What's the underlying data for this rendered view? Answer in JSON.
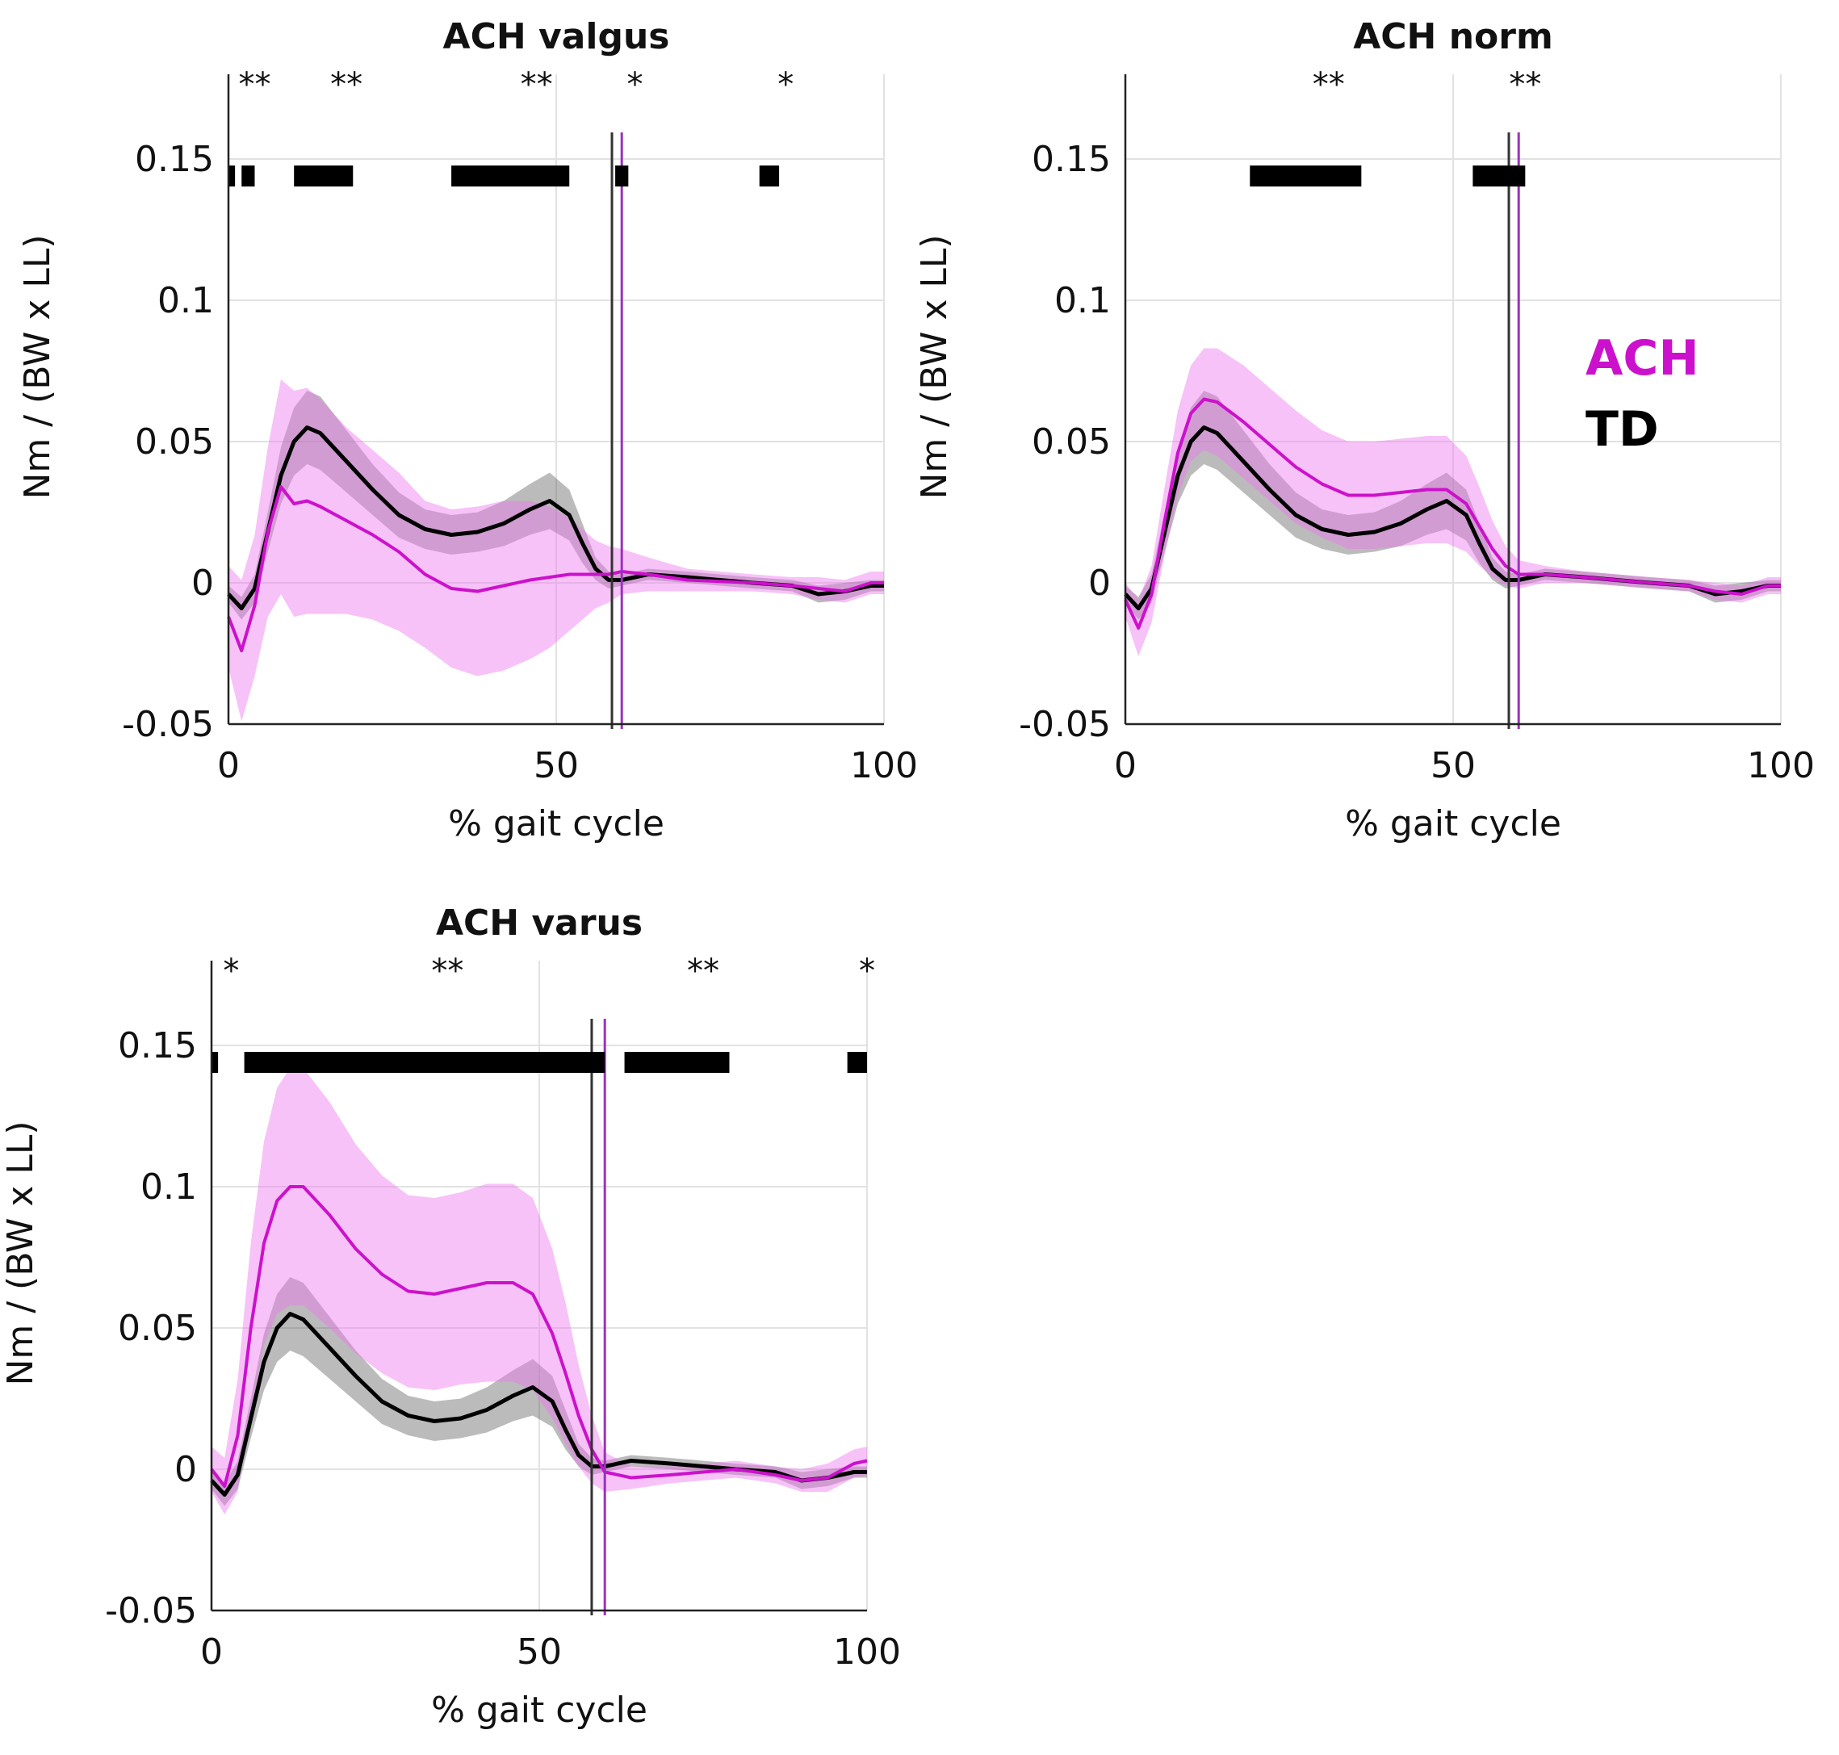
{
  "colors": {
    "ach": "#cc11cc",
    "ach_band": "#ee77ee",
    "td": "#000000",
    "td_band": "#555555",
    "grid": "#e2e2e2",
    "ach_vline": "#9933bb",
    "td_vline": "#333333"
  },
  "legend": {
    "ach": "ACH",
    "td": "TD"
  },
  "chart_data": [
    {
      "type": "line",
      "title": "ACH valgus",
      "xlabel": "% gait cycle",
      "ylabel": "Nm / (BW x LL)",
      "xlim": [
        0,
        100
      ],
      "ylim": [
        -0.05,
        0.18
      ],
      "xticks": [
        0,
        50,
        100
      ],
      "xtick_labels": [
        "0",
        "50",
        "100"
      ],
      "yticks": [
        -0.05,
        0,
        0.05,
        0.1,
        0.15
      ],
      "ytick_labels": [
        "-0.05",
        "0",
        "0.05",
        "0.1",
        "0.15"
      ],
      "grid": true,
      "toe_off": {
        "td": 58.5,
        "ach": 60
      },
      "significance_bars": [
        [
          0,
          1
        ],
        [
          2,
          4
        ],
        [
          10,
          19
        ],
        [
          34,
          52
        ],
        [
          59,
          61
        ],
        [
          81,
          84
        ]
      ],
      "stars": [
        {
          "x": 4,
          "text": "**"
        },
        {
          "x": 18,
          "text": "**"
        },
        {
          "x": 47,
          "text": "**"
        },
        {
          "x": 62,
          "text": "*"
        },
        {
          "x": 85,
          "text": "*"
        }
      ],
      "series": [
        {
          "name": "TD",
          "x": [
            0,
            2,
            4,
            6,
            8,
            10,
            12,
            14,
            18,
            22,
            26,
            30,
            34,
            38,
            42,
            46,
            49,
            52,
            54,
            56,
            58,
            60,
            64,
            70,
            80,
            86,
            90,
            94,
            98,
            100
          ],
          "mean": [
            -0.004,
            -0.009,
            -0.002,
            0.018,
            0.038,
            0.05,
            0.055,
            0.053,
            0.043,
            0.033,
            0.024,
            0.019,
            0.017,
            0.018,
            0.021,
            0.026,
            0.029,
            0.024,
            0.014,
            0.005,
            0.001,
            0.001,
            0.003,
            0.002,
            0.0,
            -0.001,
            -0.004,
            -0.003,
            -0.001,
            -0.001
          ],
          "sd": [
            0.003,
            0.004,
            0.005,
            0.007,
            0.01,
            0.012,
            0.013,
            0.013,
            0.011,
            0.009,
            0.008,
            0.007,
            0.007,
            0.007,
            0.008,
            0.009,
            0.01,
            0.009,
            0.007,
            0.004,
            0.003,
            0.002,
            0.002,
            0.002,
            0.002,
            0.002,
            0.003,
            0.003,
            0.002,
            0.002
          ]
        },
        {
          "name": "ACH",
          "x": [
            0,
            2,
            4,
            6,
            8,
            10,
            12,
            14,
            18,
            22,
            26,
            30,
            34,
            38,
            42,
            46,
            49,
            52,
            54,
            56,
            58,
            60,
            64,
            70,
            80,
            86,
            90,
            94,
            98,
            100
          ],
          "mean": [
            -0.012,
            -0.024,
            -0.008,
            0.018,
            0.034,
            0.028,
            0.029,
            0.027,
            0.022,
            0.017,
            0.011,
            0.003,
            -0.002,
            -0.003,
            -0.001,
            0.001,
            0.002,
            0.003,
            0.003,
            0.003,
            0.003,
            0.004,
            0.003,
            0.001,
            0.0,
            -0.001,
            -0.002,
            -0.003,
            0.0,
            0.0
          ],
          "sd": [
            0.018,
            0.025,
            0.025,
            0.03,
            0.038,
            0.04,
            0.04,
            0.038,
            0.033,
            0.03,
            0.028,
            0.026,
            0.028,
            0.03,
            0.03,
            0.028,
            0.025,
            0.02,
            0.016,
            0.012,
            0.01,
            0.008,
            0.006,
            0.004,
            0.003,
            0.003,
            0.004,
            0.004,
            0.004,
            0.004
          ]
        }
      ]
    },
    {
      "type": "line",
      "title": "ACH norm",
      "xlabel": "% gait cycle",
      "ylabel": "Nm / (BW x LL)",
      "xlim": [
        0,
        100
      ],
      "ylim": [
        -0.05,
        0.18
      ],
      "xticks": [
        0,
        50,
        100
      ],
      "xtick_labels": [
        "0",
        "50",
        "100"
      ],
      "yticks": [
        -0.05,
        0,
        0.05,
        0.1,
        0.15
      ],
      "ytick_labels": [
        "-0.05",
        "0",
        "0.05",
        "0.1",
        "0.15"
      ],
      "grid": true,
      "toe_off": {
        "td": 58.5,
        "ach": 60
      },
      "significance_bars": [
        [
          19,
          36
        ],
        [
          53,
          61
        ]
      ],
      "stars": [
        {
          "x": 31,
          "text": "**"
        },
        {
          "x": 61,
          "text": "**"
        }
      ],
      "series": [
        {
          "name": "TD",
          "x": [
            0,
            2,
            4,
            6,
            8,
            10,
            12,
            14,
            18,
            22,
            26,
            30,
            34,
            38,
            42,
            46,
            49,
            52,
            54,
            56,
            58,
            60,
            64,
            70,
            80,
            86,
            90,
            94,
            98,
            100
          ],
          "mean": [
            -0.004,
            -0.009,
            -0.002,
            0.018,
            0.038,
            0.05,
            0.055,
            0.053,
            0.043,
            0.033,
            0.024,
            0.019,
            0.017,
            0.018,
            0.021,
            0.026,
            0.029,
            0.024,
            0.014,
            0.005,
            0.001,
            0.001,
            0.003,
            0.002,
            0.0,
            -0.001,
            -0.004,
            -0.003,
            -0.001,
            -0.001
          ],
          "sd": [
            0.003,
            0.004,
            0.005,
            0.007,
            0.01,
            0.012,
            0.013,
            0.013,
            0.011,
            0.009,
            0.008,
            0.007,
            0.007,
            0.007,
            0.008,
            0.009,
            0.01,
            0.009,
            0.007,
            0.004,
            0.003,
            0.002,
            0.002,
            0.002,
            0.002,
            0.002,
            0.003,
            0.003,
            0.002,
            0.002
          ]
        },
        {
          "name": "ACH",
          "x": [
            0,
            2,
            4,
            6,
            8,
            10,
            12,
            14,
            18,
            22,
            26,
            30,
            34,
            38,
            42,
            46,
            49,
            52,
            54,
            56,
            58,
            60,
            64,
            70,
            80,
            86,
            90,
            94,
            98,
            100
          ],
          "mean": [
            -0.006,
            -0.016,
            -0.004,
            0.022,
            0.046,
            0.06,
            0.065,
            0.064,
            0.057,
            0.049,
            0.041,
            0.035,
            0.031,
            0.031,
            0.032,
            0.033,
            0.033,
            0.028,
            0.02,
            0.012,
            0.006,
            0.003,
            0.003,
            0.002,
            0.0,
            -0.001,
            -0.003,
            -0.004,
            -0.001,
            -0.001
          ],
          "sd": [
            0.006,
            0.01,
            0.01,
            0.012,
            0.015,
            0.017,
            0.018,
            0.019,
            0.02,
            0.02,
            0.02,
            0.019,
            0.019,
            0.019,
            0.019,
            0.019,
            0.019,
            0.017,
            0.014,
            0.01,
            0.007,
            0.005,
            0.003,
            0.002,
            0.002,
            0.002,
            0.003,
            0.003,
            0.003,
            0.003
          ]
        }
      ]
    },
    {
      "type": "line",
      "title": "ACH varus",
      "xlabel": "% gait cycle",
      "ylabel": "Nm / (BW x LL)",
      "xlim": [
        0,
        100
      ],
      "ylim": [
        -0.05,
        0.18
      ],
      "xticks": [
        0,
        50,
        100
      ],
      "xtick_labels": [
        "0",
        "50",
        "100"
      ],
      "yticks": [
        -0.05,
        0,
        0.05,
        0.1,
        0.15
      ],
      "ytick_labels": [
        "-0.05",
        "0",
        "0.05",
        "0.1",
        "0.15"
      ],
      "grid": true,
      "toe_off": {
        "td": 58,
        "ach": 60
      },
      "significance_bars": [
        [
          0,
          1
        ],
        [
          5,
          60
        ],
        [
          63,
          79
        ],
        [
          97,
          100
        ]
      ],
      "stars": [
        {
          "x": 3,
          "text": "*"
        },
        {
          "x": 36,
          "text": "**"
        },
        {
          "x": 75,
          "text": "**"
        },
        {
          "x": 100,
          "text": "*"
        }
      ],
      "series": [
        {
          "name": "TD",
          "x": [
            0,
            2,
            4,
            6,
            8,
            10,
            12,
            14,
            18,
            22,
            26,
            30,
            34,
            38,
            42,
            46,
            49,
            52,
            54,
            56,
            58,
            60,
            64,
            70,
            80,
            86,
            90,
            94,
            98,
            100
          ],
          "mean": [
            -0.004,
            -0.009,
            -0.002,
            0.018,
            0.038,
            0.05,
            0.055,
            0.053,
            0.043,
            0.033,
            0.024,
            0.019,
            0.017,
            0.018,
            0.021,
            0.026,
            0.029,
            0.024,
            0.014,
            0.005,
            0.001,
            0.001,
            0.003,
            0.002,
            0.0,
            -0.001,
            -0.004,
            -0.003,
            -0.001,
            -0.001
          ],
          "sd": [
            0.003,
            0.004,
            0.005,
            0.007,
            0.01,
            0.012,
            0.013,
            0.013,
            0.011,
            0.009,
            0.008,
            0.007,
            0.007,
            0.007,
            0.008,
            0.009,
            0.01,
            0.009,
            0.007,
            0.004,
            0.003,
            0.002,
            0.002,
            0.002,
            0.002,
            0.002,
            0.003,
            0.003,
            0.002,
            0.002
          ]
        },
        {
          "name": "ACH",
          "x": [
            0,
            2,
            4,
            6,
            8,
            10,
            12,
            14,
            18,
            22,
            26,
            30,
            34,
            38,
            42,
            46,
            49,
            52,
            54,
            56,
            58,
            60,
            64,
            70,
            80,
            86,
            90,
            94,
            98,
            100
          ],
          "mean": [
            0.0,
            -0.006,
            0.012,
            0.05,
            0.08,
            0.095,
            0.1,
            0.1,
            0.09,
            0.078,
            0.069,
            0.063,
            0.062,
            0.064,
            0.066,
            0.066,
            0.062,
            0.048,
            0.034,
            0.019,
            0.007,
            -0.001,
            -0.003,
            -0.002,
            0.0,
            -0.002,
            -0.004,
            -0.003,
            0.002,
            0.003
          ],
          "sd": [
            0.008,
            0.01,
            0.02,
            0.03,
            0.036,
            0.04,
            0.042,
            0.042,
            0.04,
            0.037,
            0.035,
            0.034,
            0.034,
            0.034,
            0.035,
            0.035,
            0.034,
            0.03,
            0.025,
            0.018,
            0.012,
            0.007,
            0.004,
            0.003,
            0.003,
            0.003,
            0.004,
            0.005,
            0.005,
            0.005
          ]
        }
      ]
    }
  ]
}
